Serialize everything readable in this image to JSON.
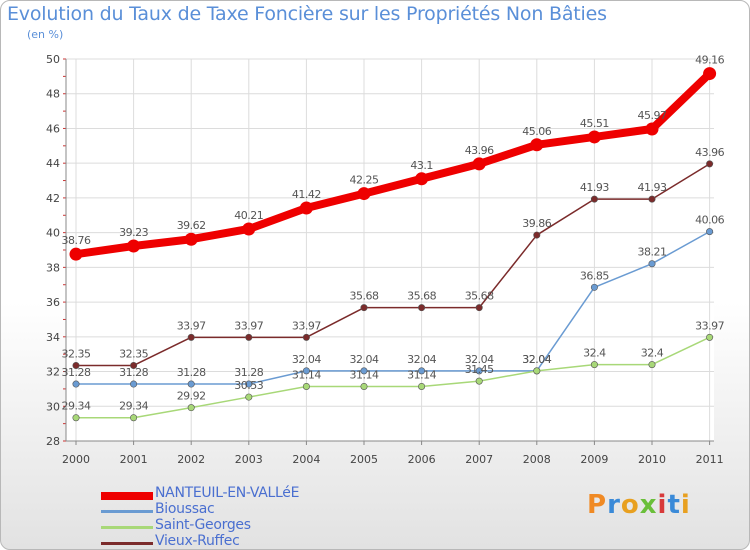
{
  "chart_data": {
    "type": "line",
    "title": "Evolution du Taux de Taxe Foncière sur les Propriétés Non Bâties",
    "unit_label": "(en %)",
    "x": [
      "2000",
      "2001",
      "2002",
      "2003",
      "2004",
      "2005",
      "2006",
      "2007",
      "2008",
      "2009",
      "2010",
      "2011"
    ],
    "ylim": [
      28,
      50
    ],
    "yticks": [
      28,
      30,
      32,
      34,
      36,
      38,
      40,
      42,
      44,
      46,
      48,
      50
    ],
    "grid": true,
    "legend_position": "bottom-left",
    "series": [
      {
        "name": "NANTEUIL-EN-VALLéE",
        "color": "#ee0000",
        "thick": true,
        "values": [
          38.76,
          39.23,
          39.62,
          40.21,
          41.42,
          42.25,
          43.1,
          43.96,
          45.06,
          45.51,
          45.97,
          49.16
        ],
        "labels": [
          "38.76",
          "39.23",
          "39.62",
          "40.21",
          "41.42",
          "42.25",
          "43.1",
          "43.96",
          "45.06",
          "45.51",
          "45.97",
          "49.16"
        ]
      },
      {
        "name": "Bioussac",
        "color": "#6a9bd2",
        "thick": false,
        "values": [
          31.28,
          31.28,
          31.28,
          31.28,
          32.04,
          32.04,
          32.04,
          32.04,
          32.04,
          36.85,
          38.21,
          40.06
        ],
        "labels": [
          "31.28",
          "31.28",
          "31.28",
          "31.28",
          "32.04",
          "32.04",
          "32.04",
          "32.04",
          "32.04",
          "36.85",
          "38.21",
          "40.06"
        ]
      },
      {
        "name": "Saint-Georges",
        "color": "#a8d878",
        "thick": false,
        "values": [
          29.34,
          29.34,
          29.92,
          30.53,
          31.14,
          31.14,
          31.14,
          31.45,
          32.04,
          32.4,
          32.4,
          33.97
        ],
        "labels": [
          "29.34",
          "29.34",
          "29.92",
          "30.53",
          "31.14",
          "31.14",
          "31.14",
          "31.45",
          "32.04",
          "32.4",
          "32.4",
          "33.97"
        ]
      },
      {
        "name": "Vieux-Ruffec",
        "color": "#7b2b2b",
        "thick": false,
        "values": [
          32.35,
          32.35,
          33.97,
          33.97,
          33.97,
          35.68,
          35.68,
          35.68,
          39.86,
          41.93,
          41.93,
          43.96
        ],
        "labels": [
          "32.35",
          "32.35",
          "33.97",
          "33.97",
          "33.97",
          "35.68",
          "35.68",
          "35.68",
          "39.86",
          "41.93",
          "41.93",
          "43.96"
        ]
      }
    ]
  },
  "logo": {
    "text": "Proxiti"
  }
}
